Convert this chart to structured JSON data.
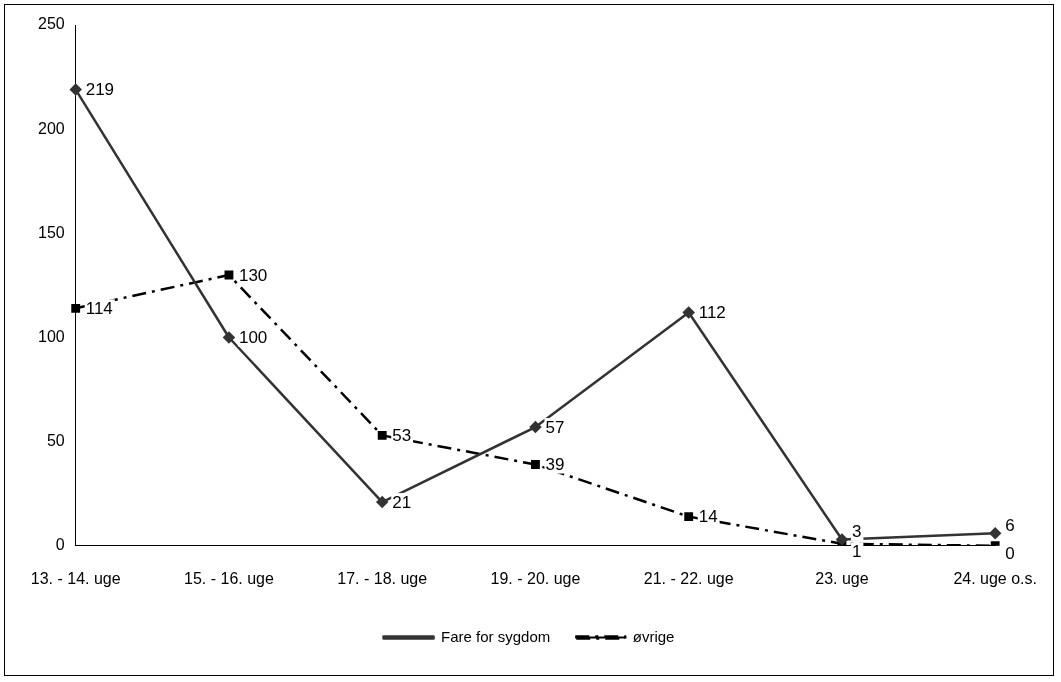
{
  "chart_data": {
    "type": "line",
    "categories": [
      "13. - 14. uge",
      "15. - 16. uge",
      "17. - 18. uge",
      "19. - 20. uge",
      "21. - 22. uge",
      "23. uge",
      "24. uge o.s."
    ],
    "series": [
      {
        "name": "Fare for sygdom",
        "color": "#333333",
        "marker": "diamond",
        "line_style": "solid",
        "values": [
          219,
          100,
          21,
          57,
          112,
          3,
          6
        ]
      },
      {
        "name": "øvrige",
        "color": "#000000",
        "marker": "square",
        "line_style": "dashed",
        "values": [
          114,
          130,
          53,
          39,
          14,
          1,
          0
        ]
      }
    ],
    "ylim": [
      0,
      250
    ],
    "yticks": [
      0,
      50,
      100,
      150,
      200,
      250
    ],
    "grid": false,
    "legend": "bottom",
    "data_labels": true
  }
}
